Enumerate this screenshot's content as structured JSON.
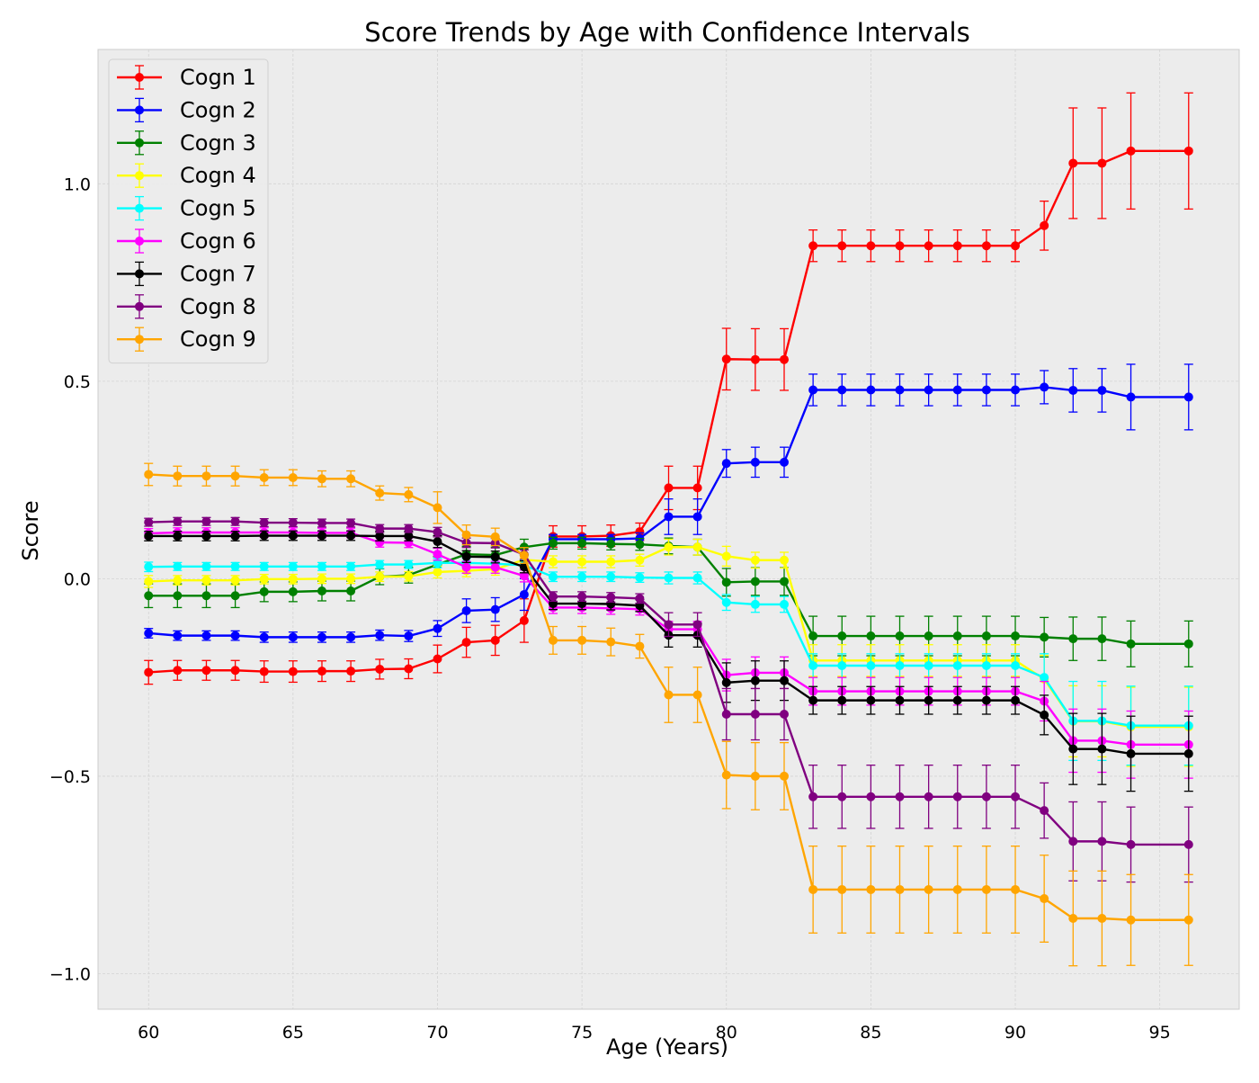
{
  "chart_data": {
    "type": "line",
    "title": "Score Trends by Age with Confidence Intervals",
    "xlabel": "Age (Years)",
    "ylabel": "Score",
    "xlim": [
      58.25,
      97.75
    ],
    "ylim": [
      -1.09,
      1.34
    ],
    "xticks": [
      60,
      65,
      70,
      75,
      80,
      85,
      90,
      95
    ],
    "xtick_labels": [
      "60",
      "65",
      "70",
      "75",
      "80",
      "85",
      "90",
      "95"
    ],
    "yticks": [
      -1.0,
      -0.5,
      0.0,
      0.5,
      1.0
    ],
    "ytick_labels": [
      "−1.0",
      "−0.5",
      "0.0",
      "0.5",
      "1.0"
    ],
    "grid": true,
    "legend_position": "upper-left",
    "x": [
      60,
      61,
      62,
      63,
      64,
      65,
      66,
      67,
      68,
      69,
      70,
      71,
      72,
      73,
      74,
      75,
      76,
      77,
      78,
      79,
      80,
      81,
      82,
      83,
      84,
      85,
      86,
      87,
      88,
      89,
      90,
      91,
      92,
      93,
      94,
      96
    ],
    "series": [
      {
        "name": "Cogn 1",
        "color": "#ff0000",
        "values": [
          -0.237,
          -0.232,
          -0.232,
          -0.232,
          -0.235,
          -0.235,
          -0.234,
          -0.234,
          -0.229,
          -0.228,
          -0.203,
          -0.161,
          -0.156,
          -0.106,
          0.107,
          0.107,
          0.109,
          0.119,
          0.23,
          0.23,
          0.556,
          0.555,
          0.555,
          0.843,
          0.843,
          0.843,
          0.843,
          0.843,
          0.843,
          0.843,
          0.843,
          0.894,
          1.052,
          1.052,
          1.083,
          1.083
        ],
        "errors": [
          0.03,
          0.025,
          0.025,
          0.025,
          0.027,
          0.027,
          0.026,
          0.026,
          0.025,
          0.025,
          0.035,
          0.038,
          0.038,
          0.055,
          0.027,
          0.027,
          0.027,
          0.022,
          0.055,
          0.055,
          0.078,
          0.078,
          0.078,
          0.04,
          0.04,
          0.04,
          0.04,
          0.04,
          0.04,
          0.04,
          0.04,
          0.062,
          0.14,
          0.14,
          0.147,
          0.147
        ]
      },
      {
        "name": "Cogn 2",
        "color": "#0000ff",
        "values": [
          -0.138,
          -0.144,
          -0.144,
          -0.144,
          -0.148,
          -0.148,
          -0.148,
          -0.148,
          -0.143,
          -0.145,
          -0.126,
          -0.081,
          -0.078,
          -0.04,
          0.1,
          0.1,
          0.1,
          0.102,
          0.157,
          0.157,
          0.292,
          0.295,
          0.295,
          0.478,
          0.478,
          0.478,
          0.478,
          0.478,
          0.478,
          0.478,
          0.478,
          0.485,
          0.477,
          0.477,
          0.46,
          0.46
        ],
        "errors": [
          0.012,
          0.012,
          0.012,
          0.012,
          0.013,
          0.013,
          0.013,
          0.013,
          0.013,
          0.014,
          0.02,
          0.03,
          0.03,
          0.04,
          0.012,
          0.012,
          0.012,
          0.014,
          0.045,
          0.045,
          0.035,
          0.038,
          0.038,
          0.04,
          0.04,
          0.04,
          0.04,
          0.04,
          0.04,
          0.04,
          0.04,
          0.042,
          0.055,
          0.055,
          0.083,
          0.083
        ]
      },
      {
        "name": "Cogn 3",
        "color": "#008000",
        "values": [
          -0.043,
          -0.043,
          -0.043,
          -0.043,
          -0.033,
          -0.033,
          -0.031,
          -0.031,
          0.005,
          0.009,
          0.036,
          0.062,
          0.06,
          0.08,
          0.09,
          0.09,
          0.088,
          0.087,
          0.083,
          0.08,
          -0.009,
          -0.007,
          -0.007,
          -0.145,
          -0.145,
          -0.145,
          -0.145,
          -0.145,
          -0.145,
          -0.145,
          -0.145,
          -0.148,
          -0.152,
          -0.152,
          -0.165,
          -0.165
        ],
        "errors": [
          0.03,
          0.03,
          0.03,
          0.03,
          0.025,
          0.025,
          0.025,
          0.025,
          0.02,
          0.02,
          0.02,
          0.02,
          0.02,
          0.02,
          0.015,
          0.015,
          0.015,
          0.015,
          0.02,
          0.02,
          0.035,
          0.035,
          0.035,
          0.05,
          0.05,
          0.05,
          0.05,
          0.05,
          0.05,
          0.05,
          0.05,
          0.05,
          0.055,
          0.055,
          0.058,
          0.058
        ]
      },
      {
        "name": "Cogn 4",
        "color": "#ffff00",
        "values": [
          -0.007,
          -0.004,
          -0.004,
          -0.004,
          -0.001,
          -0.001,
          0.0,
          0.0,
          0.005,
          0.006,
          0.017,
          0.02,
          0.024,
          0.048,
          0.043,
          0.043,
          0.043,
          0.047,
          0.08,
          0.08,
          0.057,
          0.047,
          0.047,
          -0.207,
          -0.207,
          -0.207,
          -0.207,
          -0.207,
          -0.207,
          -0.207,
          -0.207,
          -0.254,
          -0.361,
          -0.361,
          -0.375,
          -0.375
        ],
        "errors": [
          0.015,
          0.012,
          0.012,
          0.012,
          0.012,
          0.012,
          0.012,
          0.012,
          0.012,
          0.012,
          0.015,
          0.015,
          0.015,
          0.015,
          0.015,
          0.015,
          0.015,
          0.015,
          0.02,
          0.02,
          0.025,
          0.02,
          0.02,
          0.04,
          0.04,
          0.04,
          0.04,
          0.04,
          0.04,
          0.04,
          0.04,
          0.06,
          0.09,
          0.09,
          0.1,
          0.1
        ]
      },
      {
        "name": "Cogn 5",
        "color": "#00ffff",
        "values": [
          0.03,
          0.031,
          0.031,
          0.031,
          0.031,
          0.031,
          0.031,
          0.031,
          0.036,
          0.036,
          0.04,
          0.04,
          0.038,
          0.034,
          0.005,
          0.005,
          0.005,
          0.003,
          0.002,
          0.002,
          -0.06,
          -0.065,
          -0.065,
          -0.22,
          -0.22,
          -0.22,
          -0.22,
          -0.22,
          -0.22,
          -0.22,
          -0.22,
          -0.25,
          -0.36,
          -0.36,
          -0.372,
          -0.372
        ],
        "errors": [
          0.012,
          0.01,
          0.01,
          0.01,
          0.01,
          0.01,
          0.01,
          0.01,
          0.01,
          0.01,
          0.012,
          0.012,
          0.012,
          0.012,
          0.012,
          0.012,
          0.012,
          0.012,
          0.015,
          0.015,
          0.02,
          0.02,
          0.02,
          0.03,
          0.03,
          0.03,
          0.03,
          0.03,
          0.03,
          0.03,
          0.03,
          0.06,
          0.1,
          0.1,
          0.1,
          0.1
        ]
      },
      {
        "name": "Cogn 6",
        "color": "#ff00ff",
        "values": [
          0.115,
          0.117,
          0.117,
          0.117,
          0.117,
          0.117,
          0.116,
          0.116,
          0.092,
          0.091,
          0.062,
          0.029,
          0.029,
          0.007,
          -0.073,
          -0.073,
          -0.075,
          -0.077,
          -0.128,
          -0.128,
          -0.244,
          -0.238,
          -0.238,
          -0.285,
          -0.285,
          -0.285,
          -0.285,
          -0.285,
          -0.285,
          -0.285,
          -0.285,
          -0.31,
          -0.41,
          -0.41,
          -0.42,
          -0.42
        ],
        "errors": [
          0.012,
          0.012,
          0.012,
          0.012,
          0.012,
          0.012,
          0.012,
          0.012,
          0.012,
          0.012,
          0.015,
          0.015,
          0.015,
          0.015,
          0.015,
          0.015,
          0.015,
          0.015,
          0.02,
          0.02,
          0.04,
          0.04,
          0.04,
          0.035,
          0.035,
          0.035,
          0.035,
          0.035,
          0.035,
          0.035,
          0.035,
          0.05,
          0.08,
          0.08,
          0.085,
          0.085
        ]
      },
      {
        "name": "Cogn 7",
        "color": "#000000",
        "values": [
          0.108,
          0.108,
          0.108,
          0.108,
          0.109,
          0.109,
          0.109,
          0.109,
          0.108,
          0.108,
          0.094,
          0.056,
          0.055,
          0.03,
          -0.063,
          -0.063,
          -0.064,
          -0.068,
          -0.143,
          -0.143,
          -0.263,
          -0.258,
          -0.258,
          -0.308,
          -0.308,
          -0.308,
          -0.308,
          -0.308,
          -0.308,
          -0.308,
          -0.308,
          -0.345,
          -0.431,
          -0.431,
          -0.443,
          -0.443
        ],
        "errors": [
          0.012,
          0.012,
          0.012,
          0.012,
          0.012,
          0.012,
          0.012,
          0.012,
          0.012,
          0.012,
          0.015,
          0.015,
          0.015,
          0.015,
          0.015,
          0.015,
          0.015,
          0.015,
          0.03,
          0.03,
          0.05,
          0.05,
          0.05,
          0.035,
          0.035,
          0.035,
          0.035,
          0.035,
          0.035,
          0.035,
          0.035,
          0.05,
          0.09,
          0.09,
          0.095,
          0.095
        ]
      },
      {
        "name": "Cogn 8",
        "color": "#800080",
        "values": [
          0.143,
          0.145,
          0.145,
          0.145,
          0.142,
          0.142,
          0.141,
          0.141,
          0.127,
          0.127,
          0.118,
          0.091,
          0.09,
          0.061,
          -0.045,
          -0.045,
          -0.047,
          -0.05,
          -0.116,
          -0.116,
          -0.343,
          -0.343,
          -0.343,
          -0.552,
          -0.552,
          -0.552,
          -0.552,
          -0.552,
          -0.552,
          -0.552,
          -0.552,
          -0.587,
          -0.665,
          -0.665,
          -0.673,
          -0.673
        ],
        "errors": [
          0.01,
          0.01,
          0.01,
          0.01,
          0.01,
          0.01,
          0.01,
          0.01,
          0.01,
          0.01,
          0.012,
          0.012,
          0.012,
          0.012,
          0.012,
          0.012,
          0.012,
          0.012,
          0.03,
          0.03,
          0.065,
          0.065,
          0.065,
          0.08,
          0.08,
          0.08,
          0.08,
          0.08,
          0.08,
          0.08,
          0.08,
          0.07,
          0.1,
          0.1,
          0.095,
          0.095
        ]
      },
      {
        "name": "Cogn 9",
        "color": "#ffa500",
        "values": [
          0.264,
          0.26,
          0.26,
          0.26,
          0.256,
          0.256,
          0.253,
          0.253,
          0.217,
          0.213,
          0.18,
          0.111,
          0.106,
          0.059,
          -0.156,
          -0.156,
          -0.16,
          -0.171,
          -0.294,
          -0.294,
          -0.497,
          -0.5,
          -0.5,
          -0.787,
          -0.787,
          -0.787,
          -0.787,
          -0.787,
          -0.787,
          -0.787,
          -0.787,
          -0.81,
          -0.86,
          -0.86,
          -0.864,
          -0.864
        ],
        "errors": [
          0.028,
          0.025,
          0.025,
          0.025,
          0.02,
          0.02,
          0.02,
          0.02,
          0.018,
          0.018,
          0.04,
          0.025,
          0.022,
          0.02,
          0.035,
          0.035,
          0.035,
          0.03,
          0.07,
          0.07,
          0.085,
          0.085,
          0.085,
          0.11,
          0.11,
          0.11,
          0.11,
          0.11,
          0.11,
          0.11,
          0.11,
          0.11,
          0.12,
          0.12,
          0.115,
          0.115
        ]
      }
    ]
  }
}
